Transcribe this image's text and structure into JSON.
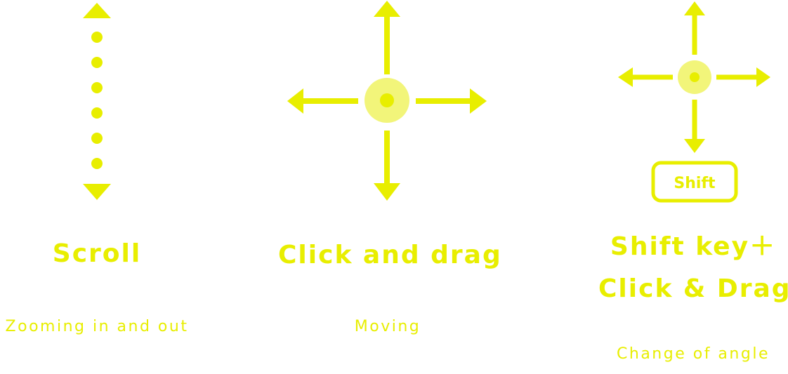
{
  "colors": {
    "accent": "#e8ee00",
    "accent_light": "#f2f57a"
  },
  "scroll": {
    "title": "Scroll",
    "description": "Zooming in and out",
    "icon": "vertical-dotted-arrow-icon"
  },
  "drag": {
    "title": "Click and drag",
    "description": "Moving",
    "icon": "four-way-move-icon"
  },
  "shift_drag": {
    "title_line1": "Shift key＋",
    "title_line2": "Click & Drag",
    "description": "Change of angle",
    "key_label": "Shift",
    "icon": "four-way-move-icon"
  }
}
